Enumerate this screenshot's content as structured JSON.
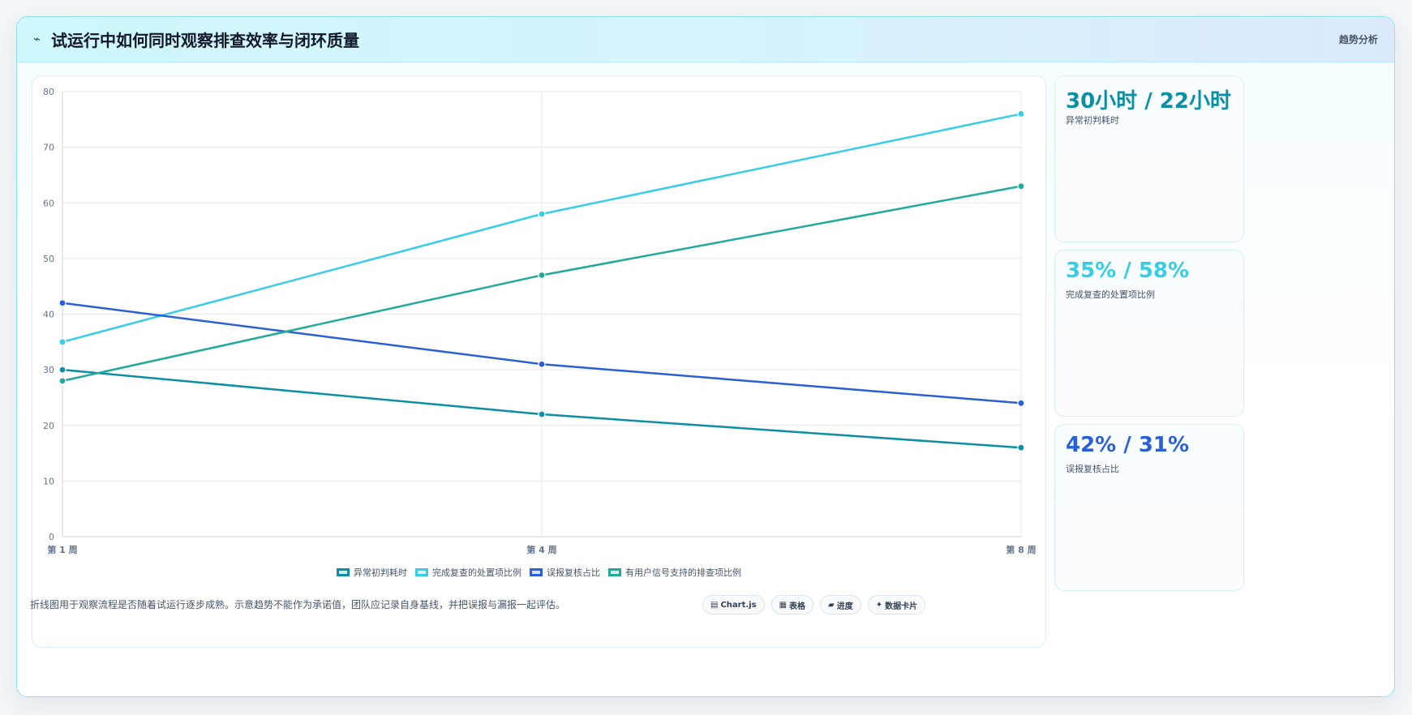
{
  "header": {
    "icon": "⌁",
    "title": "试运行中如何同时观察排查效率与闭环质量",
    "badge": "趋势分析"
  },
  "chart_data": {
    "type": "line",
    "title": "",
    "xlabel": "",
    "ylabel": "",
    "categories": [
      "第 1 周",
      "第 4 周",
      "第 8 周"
    ],
    "ylim": [
      0,
      80
    ],
    "yticks": [
      0,
      10,
      20,
      30,
      40,
      50,
      60,
      70,
      80
    ],
    "grid": true,
    "legend_position": "bottom",
    "series": [
      {
        "name": "异常初判耗时",
        "values": [
          30,
          22,
          16
        ],
        "color": "#0e8ea3"
      },
      {
        "name": "完成复查的处置项比例",
        "values": [
          35,
          58,
          76
        ],
        "color": "#37cde4"
      },
      {
        "name": "误报复核占比",
        "values": [
          42,
          31,
          24
        ],
        "color": "#2a5fd6"
      },
      {
        "name": "有用户信号支持的排查项比例",
        "values": [
          28,
          47,
          63
        ],
        "color": "#21a99a"
      }
    ]
  },
  "stats": [
    {
      "value": "30小时 / 22小时",
      "label": "异常初判耗时",
      "color": "#0e8ea3"
    },
    {
      "value": "35% / 58%",
      "label": "完成复查的处置项比例",
      "color": "#37cde4"
    },
    {
      "value": "42% / 31%",
      "label": "误报复核占比",
      "color": "#2a5fd6"
    }
  ],
  "footer": {
    "note": "折线图用于观察流程是否随着试运行逐步成熟。示意趋势不能作为承诺值，团队应记录自身基线，并把误报与漏报一起评估。",
    "chips": [
      {
        "icon": "▤",
        "label": "Chart.js"
      },
      {
        "icon": "▦",
        "label": "表格"
      },
      {
        "icon": "▰",
        "label": "进度"
      },
      {
        "icon": "✦",
        "label": "数据卡片"
      }
    ]
  }
}
